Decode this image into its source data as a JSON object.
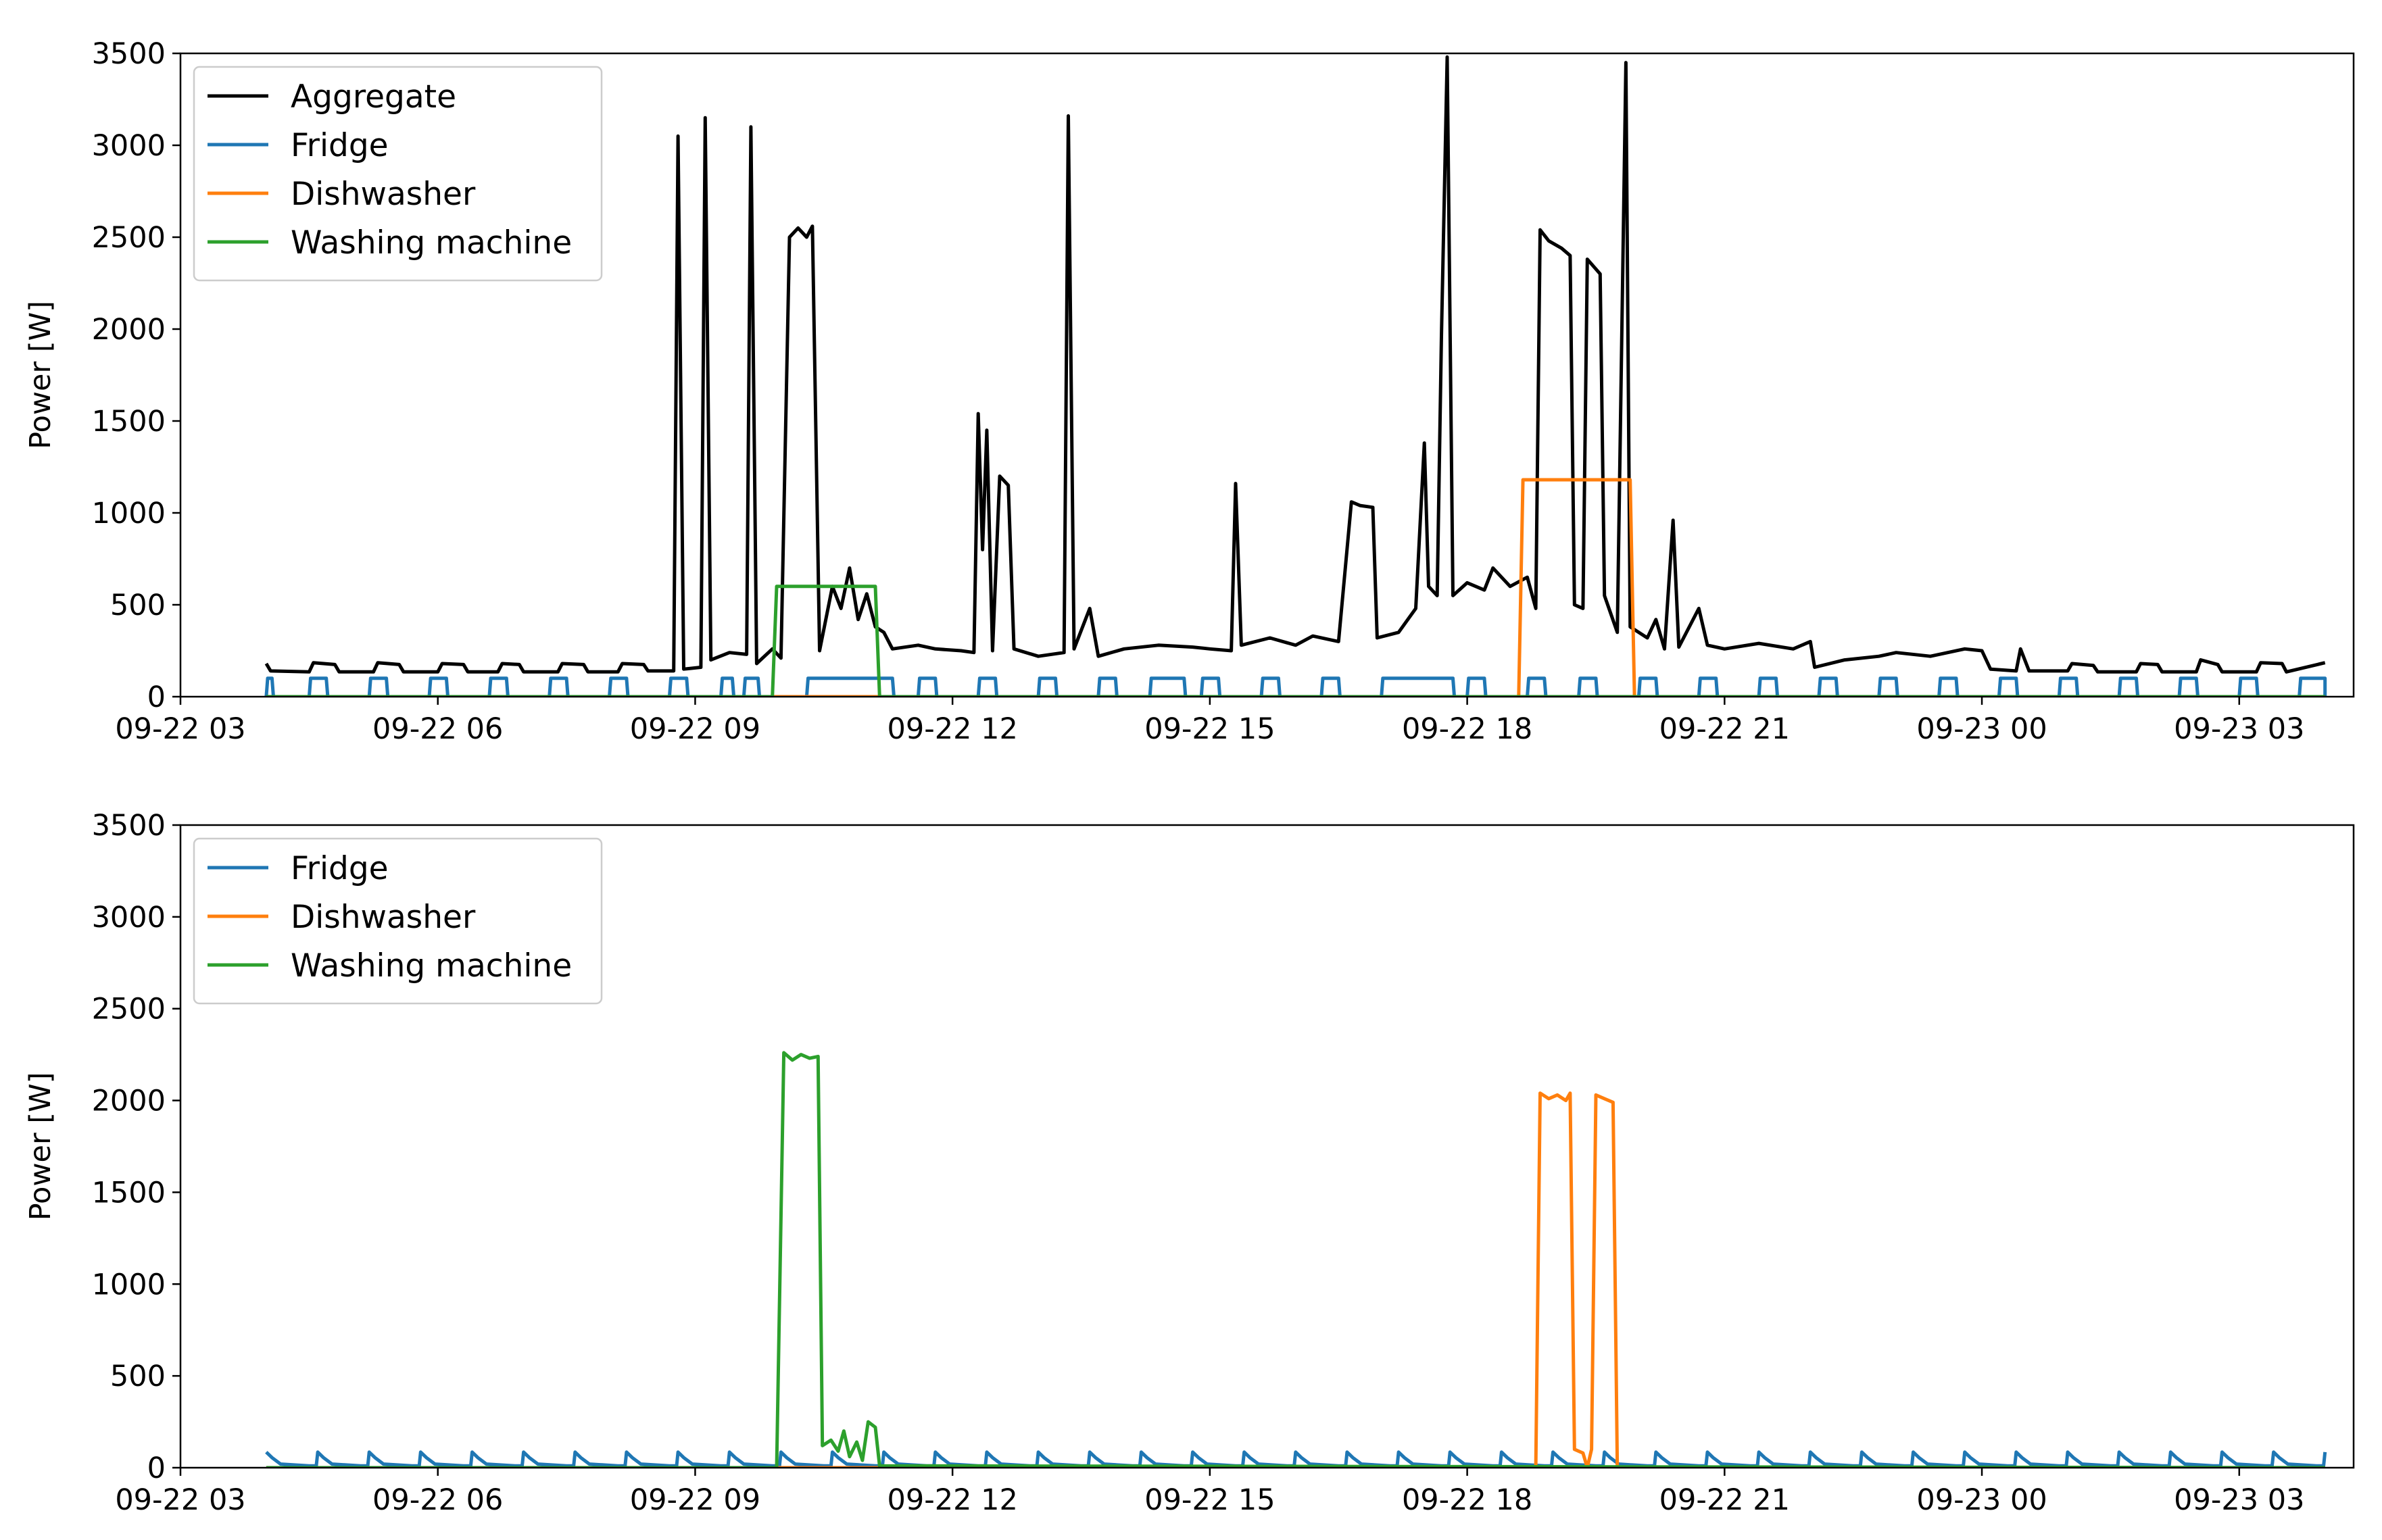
{
  "chart_data": [
    {
      "type": "line",
      "ylabel": "Power [W]",
      "xlabel": "",
      "ylim": [
        0,
        3500
      ],
      "yticks": [
        0,
        500,
        1000,
        1500,
        2000,
        2500,
        3000,
        3500
      ],
      "xlim": [
        "09-22 03:00",
        "09-23 04:20"
      ],
      "xticks": [
        "09-22 03",
        "09-22 06",
        "09-22 09",
        "09-22 12",
        "09-22 15",
        "09-22 18",
        "09-22 21",
        "09-23 00",
        "09-23 03"
      ],
      "legend": "top-left",
      "series": [
        {
          "name": "Aggregate",
          "color": "#000000",
          "points": [
            [
              "09-22 04:00",
              180
            ],
            [
              "09-22 04:03",
              140
            ],
            [
              "09-22 04:30",
              135
            ],
            [
              "09-22 04:33",
              185
            ],
            [
              "09-22 04:48",
              175
            ],
            [
              "09-22 04:51",
              135
            ],
            [
              "09-22 05:15",
              135
            ],
            [
              "09-22 05:18",
              185
            ],
            [
              "09-22 05:33",
              175
            ],
            [
              "09-22 05:36",
              135
            ],
            [
              "09-22 06:00",
              135
            ],
            [
              "09-22 06:03",
              180
            ],
            [
              "09-22 06:18",
              175
            ],
            [
              "09-22 06:21",
              135
            ],
            [
              "09-22 06:42",
              135
            ],
            [
              "09-22 06:45",
              180
            ],
            [
              "09-22 06:57",
              175
            ],
            [
              "09-22 07:00",
              135
            ],
            [
              "09-22 07:24",
              135
            ],
            [
              "09-22 07:27",
              180
            ],
            [
              "09-22 07:42",
              175
            ],
            [
              "09-22 07:45",
              135
            ],
            [
              "09-22 08:06",
              135
            ],
            [
              "09-22 08:09",
              180
            ],
            [
              "09-22 08:24",
              175
            ],
            [
              "09-22 08:27",
              140
            ],
            [
              "09-22 08:45",
              140
            ],
            [
              "09-22 08:48",
              3050
            ],
            [
              "09-22 08:52",
              150
            ],
            [
              "09-22 09:04",
              160
            ],
            [
              "09-22 09:07",
              3150
            ],
            [
              "09-22 09:11",
              200
            ],
            [
              "09-22 09:24",
              240
            ],
            [
              "09-22 09:36",
              230
            ],
            [
              "09-22 09:39",
              3100
            ],
            [
              "09-22 09:43",
              180
            ],
            [
              "09-22 09:54",
              260
            ],
            [
              "09-22 10:00",
              210
            ],
            [
              "09-22 10:06",
              2500
            ],
            [
              "09-22 10:12",
              2550
            ],
            [
              "09-22 10:18",
              2500
            ],
            [
              "09-22 10:22",
              2560
            ],
            [
              "09-22 10:27",
              250
            ],
            [
              "09-22 10:36",
              600
            ],
            [
              "09-22 10:42",
              480
            ],
            [
              "09-22 10:48",
              700
            ],
            [
              "09-22 10:54",
              420
            ],
            [
              "09-22 11:00",
              560
            ],
            [
              "09-22 11:06",
              380
            ],
            [
              "09-22 11:12",
              350
            ],
            [
              "09-22 11:18",
              260
            ],
            [
              "09-22 11:36",
              280
            ],
            [
              "09-22 11:48",
              260
            ],
            [
              "09-22 12:06",
              250
            ],
            [
              "09-22 12:15",
              240
            ],
            [
              "09-22 12:18",
              1540
            ],
            [
              "09-22 12:21",
              800
            ],
            [
              "09-22 12:24",
              1450
            ],
            [
              "09-22 12:28",
              250
            ],
            [
              "09-22 12:33",
              1200
            ],
            [
              "09-22 12:39",
              1150
            ],
            [
              "09-22 12:43",
              260
            ],
            [
              "09-22 13:00",
              220
            ],
            [
              "09-22 13:18",
              240
            ],
            [
              "09-22 13:21",
              3160
            ],
            [
              "09-22 13:25",
              260
            ],
            [
              "09-22 13:36",
              480
            ],
            [
              "09-22 13:42",
              220
            ],
            [
              "09-22 14:00",
              260
            ],
            [
              "09-22 14:24",
              280
            ],
            [
              "09-22 14:48",
              270
            ],
            [
              "09-22 15:00",
              260
            ],
            [
              "09-22 15:15",
              250
            ],
            [
              "09-22 15:18",
              1160
            ],
            [
              "09-22 15:22",
              280
            ],
            [
              "09-22 15:42",
              320
            ],
            [
              "09-22 16:00",
              280
            ],
            [
              "09-22 16:12",
              330
            ],
            [
              "09-22 16:30",
              300
            ],
            [
              "09-22 16:39",
              1060
            ],
            [
              "09-22 16:45",
              1040
            ],
            [
              "09-22 16:54",
              1030
            ],
            [
              "09-22 16:57",
              320
            ],
            [
              "09-22 17:12",
              350
            ],
            [
              "09-22 17:24",
              480
            ],
            [
              "09-22 17:30",
              1380
            ],
            [
              "09-22 17:33",
              600
            ],
            [
              "09-22 17:39",
              550
            ],
            [
              "09-22 17:42",
              1960
            ],
            [
              "09-22 17:46",
              3480
            ],
            [
              "09-22 17:50",
              550
            ],
            [
              "09-22 18:00",
              620
            ],
            [
              "09-22 18:12",
              580
            ],
            [
              "09-22 18:18",
              700
            ],
            [
              "09-22 18:30",
              600
            ],
            [
              "09-22 18:42",
              650
            ],
            [
              "09-22 18:48",
              480
            ],
            [
              "09-22 18:51",
              2540
            ],
            [
              "09-22 18:57",
              2480
            ],
            [
              "09-22 19:06",
              2440
            ],
            [
              "09-22 19:12",
              2400
            ],
            [
              "09-22 19:15",
              500
            ],
            [
              "09-22 19:21",
              480
            ],
            [
              "09-22 19:24",
              2380
            ],
            [
              "09-22 19:33",
              2300
            ],
            [
              "09-22 19:36",
              550
            ],
            [
              "09-22 19:45",
              350
            ],
            [
              "09-22 19:51",
              3450
            ],
            [
              "09-22 19:54",
              380
            ],
            [
              "09-22 20:06",
              320
            ],
            [
              "09-22 20:12",
              420
            ],
            [
              "09-22 20:18",
              260
            ],
            [
              "09-22 20:24",
              960
            ],
            [
              "09-22 20:28",
              270
            ],
            [
              "09-22 20:42",
              480
            ],
            [
              "09-22 20:48",
              280
            ],
            [
              "09-22 21:00",
              260
            ],
            [
              "09-22 21:24",
              290
            ],
            [
              "09-22 21:48",
              260
            ],
            [
              "09-22 22:00",
              300
            ],
            [
              "09-22 22:03",
              160
            ],
            [
              "09-22 22:24",
              200
            ],
            [
              "09-22 22:48",
              220
            ],
            [
              "09-22 23:00",
              240
            ],
            [
              "09-22 23:24",
              220
            ],
            [
              "09-22 23:48",
              260
            ],
            [
              "09-23 00:00",
              250
            ],
            [
              "09-23 00:06",
              150
            ],
            [
              "09-23 00:24",
              140
            ],
            [
              "09-23 00:27",
              260
            ],
            [
              "09-23 00:33",
              140
            ],
            [
              "09-23 01:00",
              140
            ],
            [
              "09-23 01:03",
              180
            ],
            [
              "09-23 01:18",
              170
            ],
            [
              "09-23 01:21",
              135
            ],
            [
              "09-23 01:48",
              135
            ],
            [
              "09-23 01:51",
              180
            ],
            [
              "09-23 02:03",
              175
            ],
            [
              "09-23 02:06",
              135
            ],
            [
              "09-23 02:30",
              135
            ],
            [
              "09-23 02:33",
              200
            ],
            [
              "09-23 02:45",
              175
            ],
            [
              "09-23 02:48",
              135
            ],
            [
              "09-23 03:12",
              135
            ],
            [
              "09-23 03:15",
              185
            ],
            [
              "09-23 03:30",
              180
            ],
            [
              "09-23 03:33",
              135
            ],
            [
              "09-23 04:00",
              185
            ]
          ]
        },
        {
          "name": "Fridge",
          "color": "#1f77b4",
          "on_power": 100,
          "cycles": [
            [
              "09-22 04:00",
              4
            ],
            [
              "09-22 04:30",
              12
            ],
            [
              "09-22 05:12",
              12
            ],
            [
              "09-22 05:54",
              12
            ],
            [
              "09-22 06:36",
              12
            ],
            [
              "09-22 07:18",
              12
            ],
            [
              "09-22 08:00",
              12
            ],
            [
              "09-22 08:42",
              12
            ],
            [
              "09-22 09:18",
              8
            ],
            [
              "09-22 09:34",
              10
            ],
            [
              "09-22 10:18",
              60
            ],
            [
              "09-22 11:36",
              12
            ],
            [
              "09-22 12:18",
              12
            ],
            [
              "09-22 13:00",
              12
            ],
            [
              "09-22 13:42",
              12
            ],
            [
              "09-22 14:18",
              24
            ],
            [
              "09-22 14:54",
              12
            ],
            [
              "09-22 15:36",
              12
            ],
            [
              "09-22 16:18",
              12
            ],
            [
              "09-22 17:00",
              50
            ],
            [
              "09-22 18:00",
              12
            ],
            [
              "09-22 18:42",
              12
            ],
            [
              "09-22 19:18",
              12
            ],
            [
              "09-22 20:00",
              12
            ],
            [
              "09-22 20:42",
              12
            ],
            [
              "09-22 21:24",
              12
            ],
            [
              "09-22 22:06",
              12
            ],
            [
              "09-22 22:48",
              12
            ],
            [
              "09-22 23:30",
              12
            ],
            [
              "09-23 00:12",
              12
            ],
            [
              "09-23 00:54",
              12
            ],
            [
              "09-23 01:36",
              12
            ],
            [
              "09-23 02:18",
              12
            ],
            [
              "09-23 03:00",
              12
            ],
            [
              "09-23 03:42",
              18
            ]
          ]
        },
        {
          "name": "Dishwasher",
          "color": "#ff7f0e",
          "points": [
            [
              "09-22 04:00",
              0
            ],
            [
              "09-22 18:36",
              0
            ],
            [
              "09-22 18:39",
              1180
            ],
            [
              "09-22 19:54",
              1180
            ],
            [
              "09-22 19:57",
              0
            ],
            [
              "09-23 04:00",
              0
            ]
          ]
        },
        {
          "name": "Washing machine",
          "color": "#2ca02c",
          "points": [
            [
              "09-22 04:00",
              0
            ],
            [
              "09-22 09:54",
              0
            ],
            [
              "09-22 09:57",
              600
            ],
            [
              "09-22 11:06",
              600
            ],
            [
              "09-22 11:09",
              0
            ],
            [
              "09-23 04:00",
              0
            ]
          ]
        }
      ]
    },
    {
      "type": "line",
      "ylabel": "Power [W]",
      "xlabel": "",
      "ylim": [
        0,
        3500
      ],
      "yticks": [
        0,
        500,
        1000,
        1500,
        2000,
        2500,
        3000,
        3500
      ],
      "xlim": [
        "09-22 03:00",
        "09-23 04:20"
      ],
      "xticks": [
        "09-22 03",
        "09-22 06",
        "09-22 09",
        "09-22 12",
        "09-22 15",
        "09-22 18",
        "09-22 21",
        "09-23 00",
        "09-23 03"
      ],
      "legend": "top-left",
      "series": [
        {
          "name": "Fridge",
          "color": "#1f77b4",
          "low_power": 10,
          "cycle_start": "09-22 04:00",
          "cycle_end": "09-23 04:00",
          "cycle_minutes": 36
        },
        {
          "name": "Dishwasher",
          "color": "#ff7f0e",
          "points": [
            [
              "09-22 04:00",
              0
            ],
            [
              "09-22 18:48",
              0
            ],
            [
              "09-22 18:51",
              2040
            ],
            [
              "09-22 18:57",
              2010
            ],
            [
              "09-22 19:03",
              2030
            ],
            [
              "09-22 19:09",
              2000
            ],
            [
              "09-22 19:12",
              2040
            ],
            [
              "09-22 19:15",
              100
            ],
            [
              "09-22 19:21",
              80
            ],
            [
              "09-22 19:24",
              0
            ],
            [
              "09-22 19:27",
              100
            ],
            [
              "09-22 19:30",
              2030
            ],
            [
              "09-22 19:36",
              2010
            ],
            [
              "09-22 19:42",
              1990
            ],
            [
              "09-22 19:45",
              0
            ],
            [
              "09-23 04:00",
              0
            ]
          ]
        },
        {
          "name": "Washing machine",
          "color": "#2ca02c",
          "points": [
            [
              "09-22 04:00",
              0
            ],
            [
              "09-22 09:57",
              0
            ],
            [
              "09-22 10:02",
              2260
            ],
            [
              "09-22 10:08",
              2220
            ],
            [
              "09-22 10:14",
              2250
            ],
            [
              "09-22 10:20",
              2230
            ],
            [
              "09-22 10:26",
              2240
            ],
            [
              "09-22 10:29",
              120
            ],
            [
              "09-22 10:35",
              150
            ],
            [
              "09-22 10:40",
              90
            ],
            [
              "09-22 10:44",
              200
            ],
            [
              "09-22 10:48",
              60
            ],
            [
              "09-22 10:53",
              140
            ],
            [
              "09-22 10:57",
              40
            ],
            [
              "09-22 11:01",
              250
            ],
            [
              "09-22 11:06",
              220
            ],
            [
              "09-22 11:09",
              10
            ],
            [
              "09-23 04:00",
              0
            ]
          ]
        }
      ]
    }
  ]
}
